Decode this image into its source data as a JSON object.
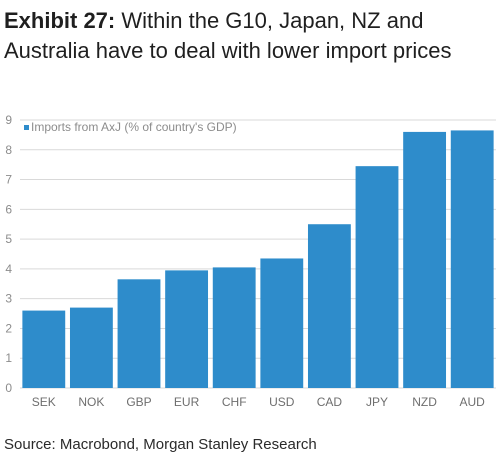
{
  "title": {
    "prefix": "Exhibit 27:",
    "text": "Within the G10, Japan, NZ and Australia have to deal with lower import prices"
  },
  "source": "Source: Macrobond, Morgan Stanley Research",
  "colors": {
    "bar": "#2e8ccb",
    "grid": "#d9d9d9",
    "axis_text": "#8c8c8c"
  },
  "chart_data": {
    "type": "bar",
    "categories": [
      "SEK",
      "NOK",
      "GBP",
      "EUR",
      "CHF",
      "USD",
      "CAD",
      "JPY",
      "NZD",
      "AUD"
    ],
    "series": [
      {
        "name": "Imports from AxJ (% of country's GDP)",
        "values": [
          2.6,
          2.7,
          3.65,
          3.95,
          4.05,
          4.35,
          5.5,
          7.45,
          8.6,
          8.65
        ]
      }
    ],
    "ylim": [
      0,
      9
    ],
    "yticks": [
      0,
      1,
      2,
      3,
      4,
      5,
      6,
      7,
      8,
      9
    ],
    "grid": true,
    "legend": "top-left"
  }
}
